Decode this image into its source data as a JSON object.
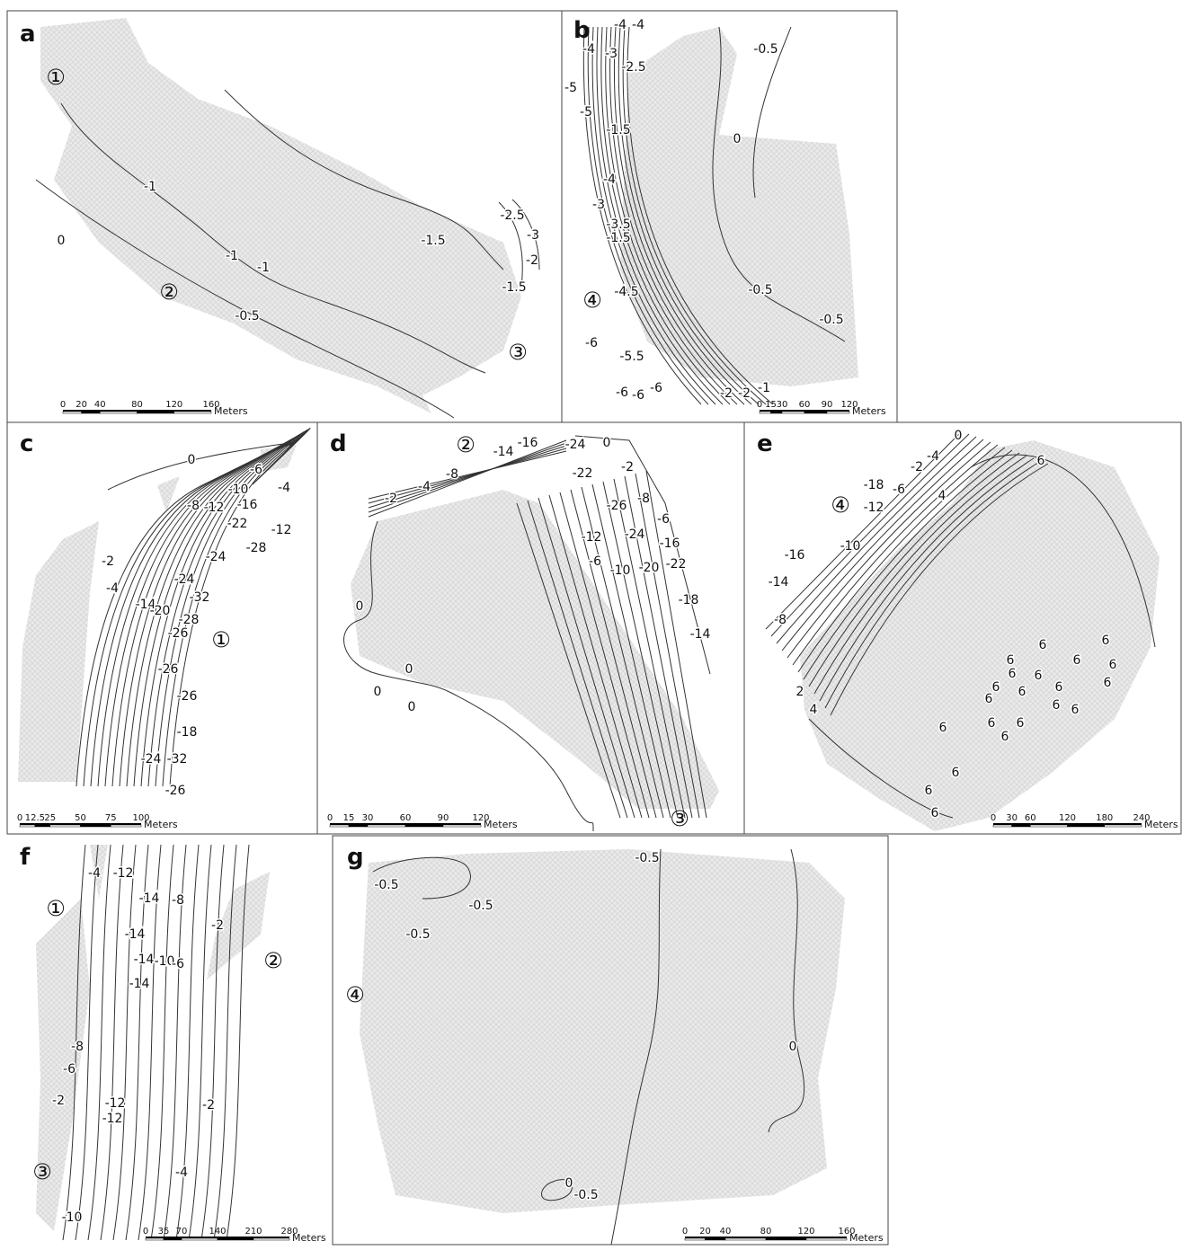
{
  "panels": [
    {
      "letter": "a",
      "markers": [
        "①",
        "②",
        "③"
      ],
      "contour_labels": [
        "-1",
        "-1",
        "-1",
        "0",
        "-0.5",
        "-1.5",
        "-2.5",
        "-3",
        "-2",
        "-1.5"
      ],
      "scale": {
        "ticks": [
          "0",
          "20",
          "40",
          "80",
          "120",
          "160"
        ],
        "unit": "Meters"
      }
    },
    {
      "letter": "b",
      "markers": [
        "④"
      ],
      "contour_labels": [
        "-4",
        "-4",
        "-4",
        "-3",
        "-2.5",
        "-5",
        "-5",
        "-1.5",
        "-4",
        "-3",
        "-3.5",
        "-1.5",
        "-4.5",
        "-6",
        "-5.5",
        "-6",
        "-6",
        "-6",
        "-2",
        "-2",
        "-1",
        "-0.5",
        "0",
        "-0.5",
        "-0.5"
      ],
      "scale": {
        "ticks": [
          "0",
          "15",
          "30",
          "60",
          "90",
          "120"
        ],
        "unit": "Meters"
      }
    },
    {
      "letter": "c",
      "markers": [
        "①"
      ],
      "contour_labels": [
        "0",
        "-6",
        "-8",
        "-10",
        "-12",
        "-16",
        "-4",
        "-22",
        "-12",
        "-2",
        "-4",
        "-24",
        "-28",
        "-14",
        "-20",
        "-24",
        "-32",
        "-26",
        "-28",
        "-26",
        "-26",
        "-18",
        "-24",
        "-32",
        "-26"
      ],
      "scale": {
        "ticks": [
          "0",
          "12.5",
          "25",
          "50",
          "75",
          "100"
        ],
        "unit": "Meters"
      }
    },
    {
      "letter": "d",
      "markers": [
        "②",
        "③"
      ],
      "contour_labels": [
        "-2",
        "-4",
        "-8",
        "-14",
        "-16",
        "-24",
        "-22",
        "0",
        "-2",
        "-26",
        "-8",
        "-6",
        "-16",
        "-22",
        "-24",
        "-12",
        "-10",
        "-6",
        "-20",
        "-18",
        "-14",
        "0",
        "0",
        "0",
        "0"
      ],
      "scale": {
        "ticks": [
          "0",
          "15",
          "30",
          "60",
          "90",
          "120"
        ],
        "unit": "Meters"
      }
    },
    {
      "letter": "e",
      "markers": [
        "④"
      ],
      "contour_labels": [
        "0",
        "-4",
        "-2",
        "-6",
        "-18",
        "-12",
        "-10",
        "-16",
        "-14",
        "-8",
        "4",
        "6",
        "2",
        "4",
        "6",
        "6",
        "6",
        "6",
        "6",
        "6",
        "6",
        "6",
        "6",
        "6",
        "6",
        "6",
        "6",
        "6",
        "6",
        "6",
        "6",
        "6",
        "6",
        "6",
        "6"
      ],
      "scale": {
        "ticks": [
          "0",
          "30",
          "60",
          "120",
          "180",
          "240"
        ],
        "unit": "Meters"
      }
    },
    {
      "letter": "f",
      "markers": [
        "①",
        "②",
        "③"
      ],
      "contour_labels": [
        "-4",
        "-12",
        "-14",
        "-8",
        "-2",
        "-14",
        "-14",
        "-10",
        "-6",
        "-14",
        "-8",
        "-6",
        "-2",
        "-12",
        "-12",
        "-2",
        "-4",
        "-10"
      ],
      "scale": {
        "ticks": [
          "0",
          "35",
          "70",
          "140",
          "210",
          "280"
        ],
        "unit": "Meters"
      }
    },
    {
      "letter": "g",
      "markers": [
        "④"
      ],
      "contour_labels": [
        "-0.5",
        "-0.5",
        "-0.5",
        "-0.5",
        "0",
        "0",
        "-0.5"
      ],
      "scale": {
        "ticks": [
          "0",
          "20",
          "40",
          "80",
          "120",
          "160"
        ],
        "unit": "Meters"
      }
    }
  ]
}
